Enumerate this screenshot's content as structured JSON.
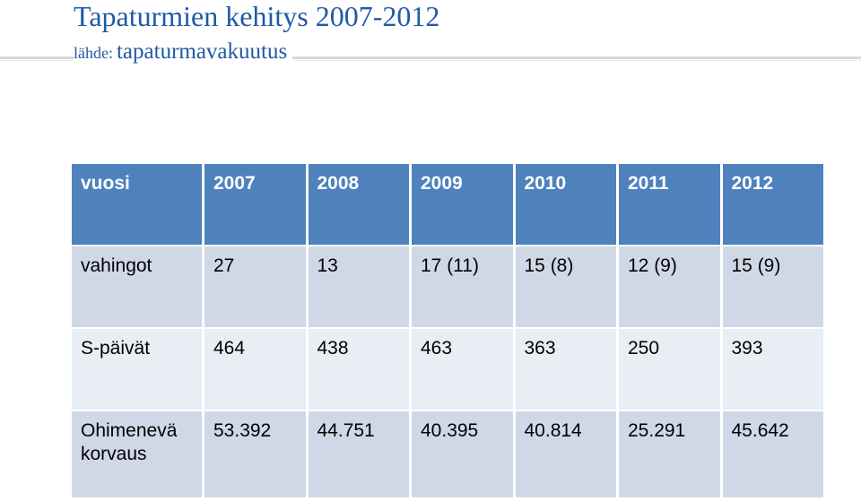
{
  "header": {
    "title": "Tapaturmien kehitys 2007-2012",
    "source_label": "lähde:",
    "source": "tapaturmavakuutus"
  },
  "table": {
    "rows": [
      [
        "vuosi",
        "2007",
        "2008",
        "2009",
        "2010",
        "2011",
        "2012"
      ],
      [
        "vahingot",
        "27",
        "13",
        "17 (11)",
        "15 (8)",
        "12 (9)",
        "15  (9)"
      ],
      [
        "S-päivät",
        "464",
        "438",
        "463",
        "363",
        "250",
        "393"
      ],
      [
        "Ohimenevä korvaus",
        "53.392",
        "44.751",
        "40.395",
        "40.814",
        "25.291",
        "45.642"
      ]
    ]
  }
}
